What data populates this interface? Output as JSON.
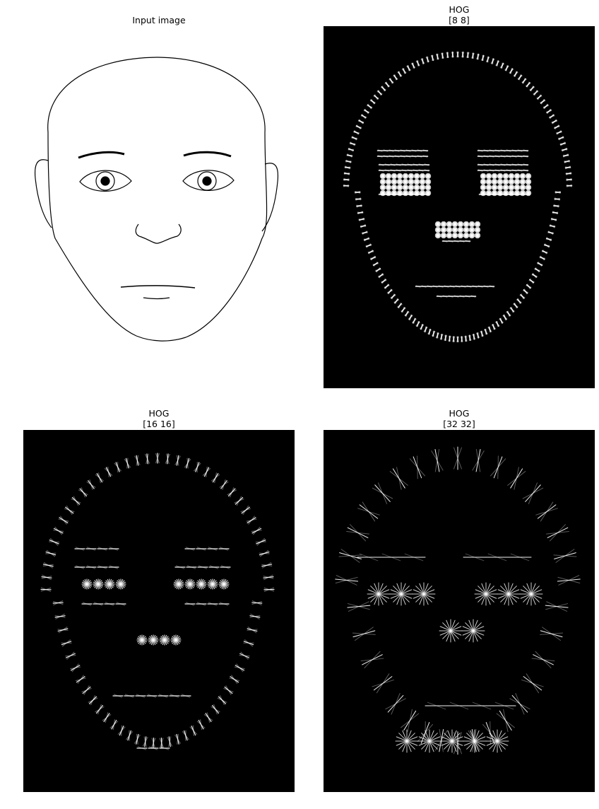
{
  "panels": [
    {
      "id": "input",
      "title": "Input image",
      "cell_size": null
    },
    {
      "id": "hog8",
      "title": "HOG\n[8 8]",
      "cell_size": [
        8,
        8
      ]
    },
    {
      "id": "hog16",
      "title": "HOG\n[16 16]",
      "cell_size": [
        16,
        16
      ]
    },
    {
      "id": "hog32",
      "title": "HOG\n[32 32]",
      "cell_size": [
        32,
        32
      ]
    }
  ],
  "colors": {
    "background": "#ffffff",
    "hog_background": "#000000",
    "stroke": "#000000",
    "hog_stroke": "#ffffff"
  }
}
